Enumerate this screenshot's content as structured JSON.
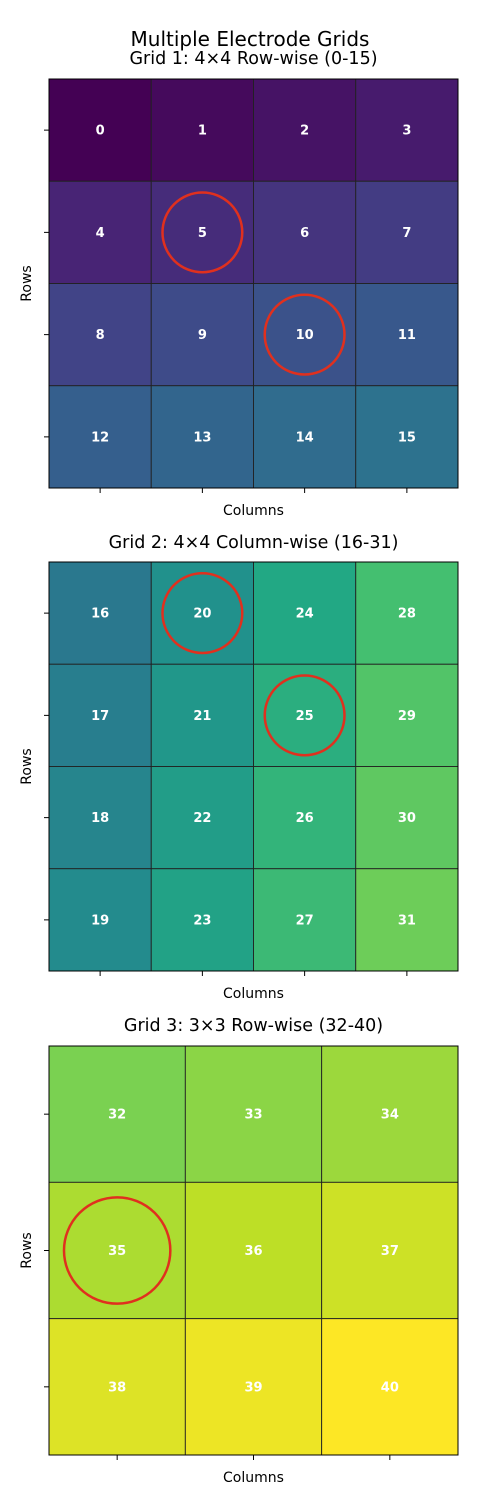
{
  "figure_title": "Multiple Electrode Grids",
  "chart_data": [
    {
      "type": "heatmap",
      "title": "Grid 1: 4×4 Row-wise (0-15)",
      "xlabel": "Columns",
      "ylabel": "Rows",
      "rows": 4,
      "cols": 4,
      "cells": [
        [
          0,
          1,
          2,
          3
        ],
        [
          4,
          5,
          6,
          7
        ],
        [
          8,
          9,
          10,
          11
        ],
        [
          12,
          13,
          14,
          15
        ]
      ],
      "highlighted": [
        5,
        10
      ],
      "tick_labels": false
    },
    {
      "type": "heatmap",
      "title": "Grid 2: 4×4 Column-wise (16-31)",
      "xlabel": "Columns",
      "ylabel": "Rows",
      "rows": 4,
      "cols": 4,
      "cells": [
        [
          16,
          20,
          24,
          28
        ],
        [
          17,
          21,
          25,
          29
        ],
        [
          18,
          22,
          26,
          30
        ],
        [
          19,
          23,
          27,
          31
        ]
      ],
      "highlighted": [
        20,
        25
      ],
      "tick_labels": false
    },
    {
      "type": "heatmap",
      "title": "Grid 3: 3×3 Row-wise (32-40)",
      "xlabel": "Columns",
      "ylabel": "Rows",
      "rows": 3,
      "cols": 3,
      "cells": [
        [
          32,
          33,
          34
        ],
        [
          35,
          36,
          37
        ],
        [
          38,
          39,
          40
        ]
      ],
      "highlighted": [
        35
      ],
      "tick_labels": false
    }
  ],
  "colormap": "viridis",
  "color_range": [
    0,
    40
  ],
  "highlight_color": "#e0301e",
  "text_color": "#ffffff"
}
